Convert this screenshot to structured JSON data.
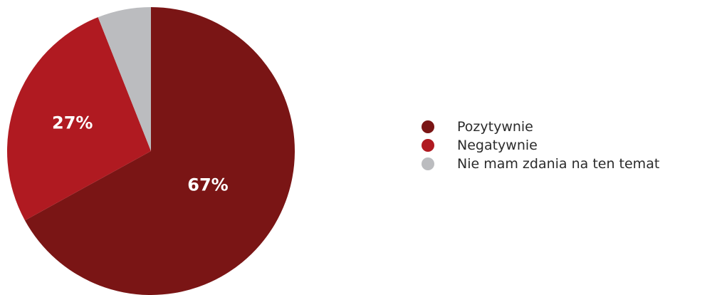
{
  "chart_data": {
    "type": "pie",
    "title": "",
    "slices": [
      {
        "label": "Pozytywnie",
        "value": 67,
        "display": "67%",
        "color": "#7A1515"
      },
      {
        "label": "Negatywnie",
        "value": 27,
        "display": "27%",
        "color": "#B01A21"
      },
      {
        "label": "Nie mam zdania na ten temat",
        "value": 6,
        "display": "",
        "color": "#BBBCBF"
      }
    ],
    "start": "top",
    "direction": "clockwise",
    "legend_placement": "right"
  }
}
